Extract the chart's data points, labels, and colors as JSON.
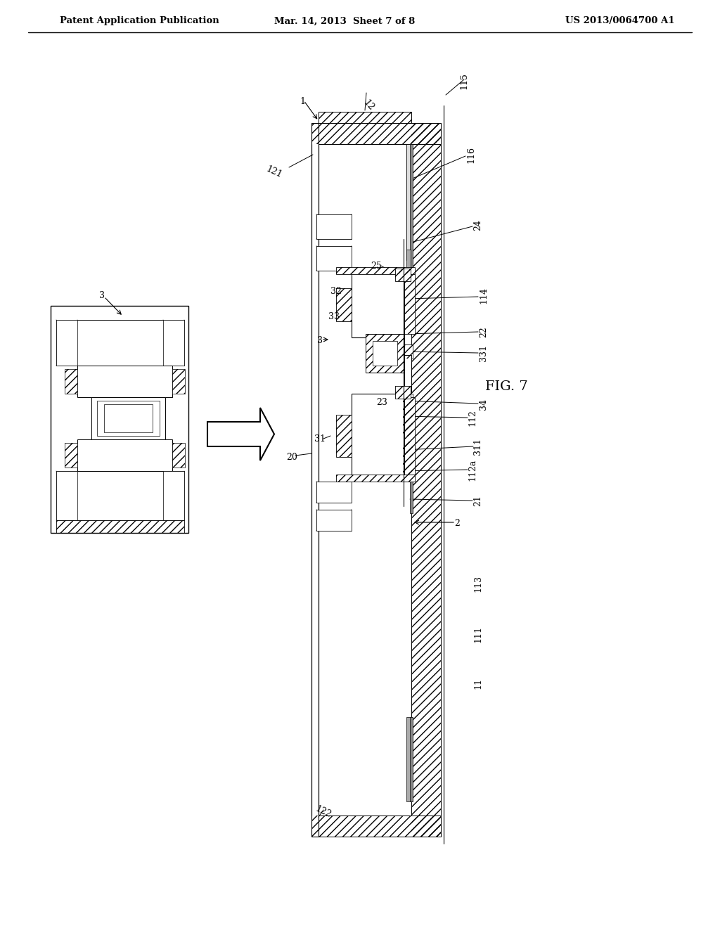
{
  "bg_color": "#ffffff",
  "line_color": "#000000",
  "title_left": "Patent Application Publication",
  "title_center": "Mar. 14, 2013  Sheet 7 of 8",
  "title_right": "US 2013/0064700 A1",
  "fig_label": "FIG. 7",
  "fig_width": 10.24,
  "fig_height": 13.2
}
